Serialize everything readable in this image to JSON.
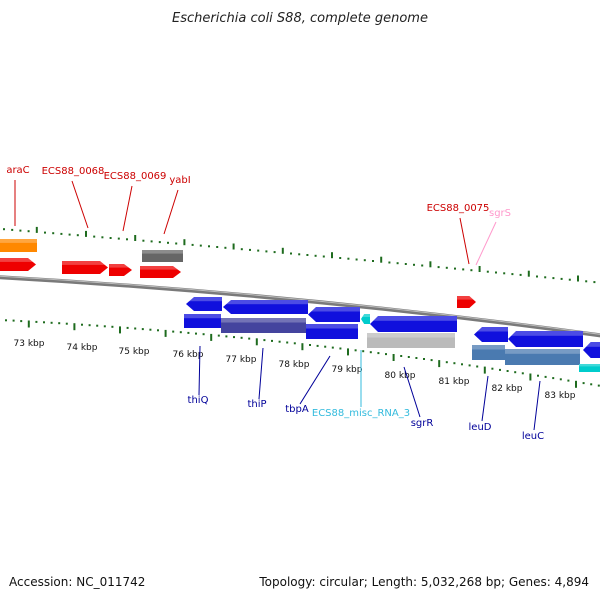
{
  "title": "Escherichia coli S88, complete genome",
  "footer": {
    "accession": "Accession: NC_011742",
    "summary": "Topology: circular; Length: 5,032,268 bp; Genes: 4,894"
  },
  "colors": {
    "tick": "#1e6b1e",
    "backbone": "#7a7a7a",
    "gene_red": "#ee0000",
    "gene_blue": "#1010dd",
    "gene_steel": "#4a7ab0",
    "gene_gray": "#666666",
    "gene_lightgray": "#bbbbbb",
    "gene_orange": "#ff8800",
    "gene_cyan": "#00cccc",
    "gene_pink": "#ff88bb",
    "label_red": "#cc0000",
    "label_blue": "#000099",
    "label_cyan": "#33bbdd",
    "label_pink": "#ff99cc"
  },
  "kbp_labels": [
    "73 kbp",
    "74 kbp",
    "75 kbp",
    "76 kbp",
    "77 kbp",
    "78 kbp",
    "79 kbp",
    "80 kbp",
    "81 kbp",
    "82 kbp",
    "83 kbp"
  ],
  "top_labels": [
    "araC",
    "ECS88_0068",
    "ECS88_0069",
    "yabI",
    "ECS88_0075",
    "sgrS"
  ],
  "bottom_labels": [
    "thiQ",
    "thiP",
    "tbpA",
    "ECS88_misc_RNA_3",
    "sgrR",
    "leuD",
    "leuC"
  ]
}
